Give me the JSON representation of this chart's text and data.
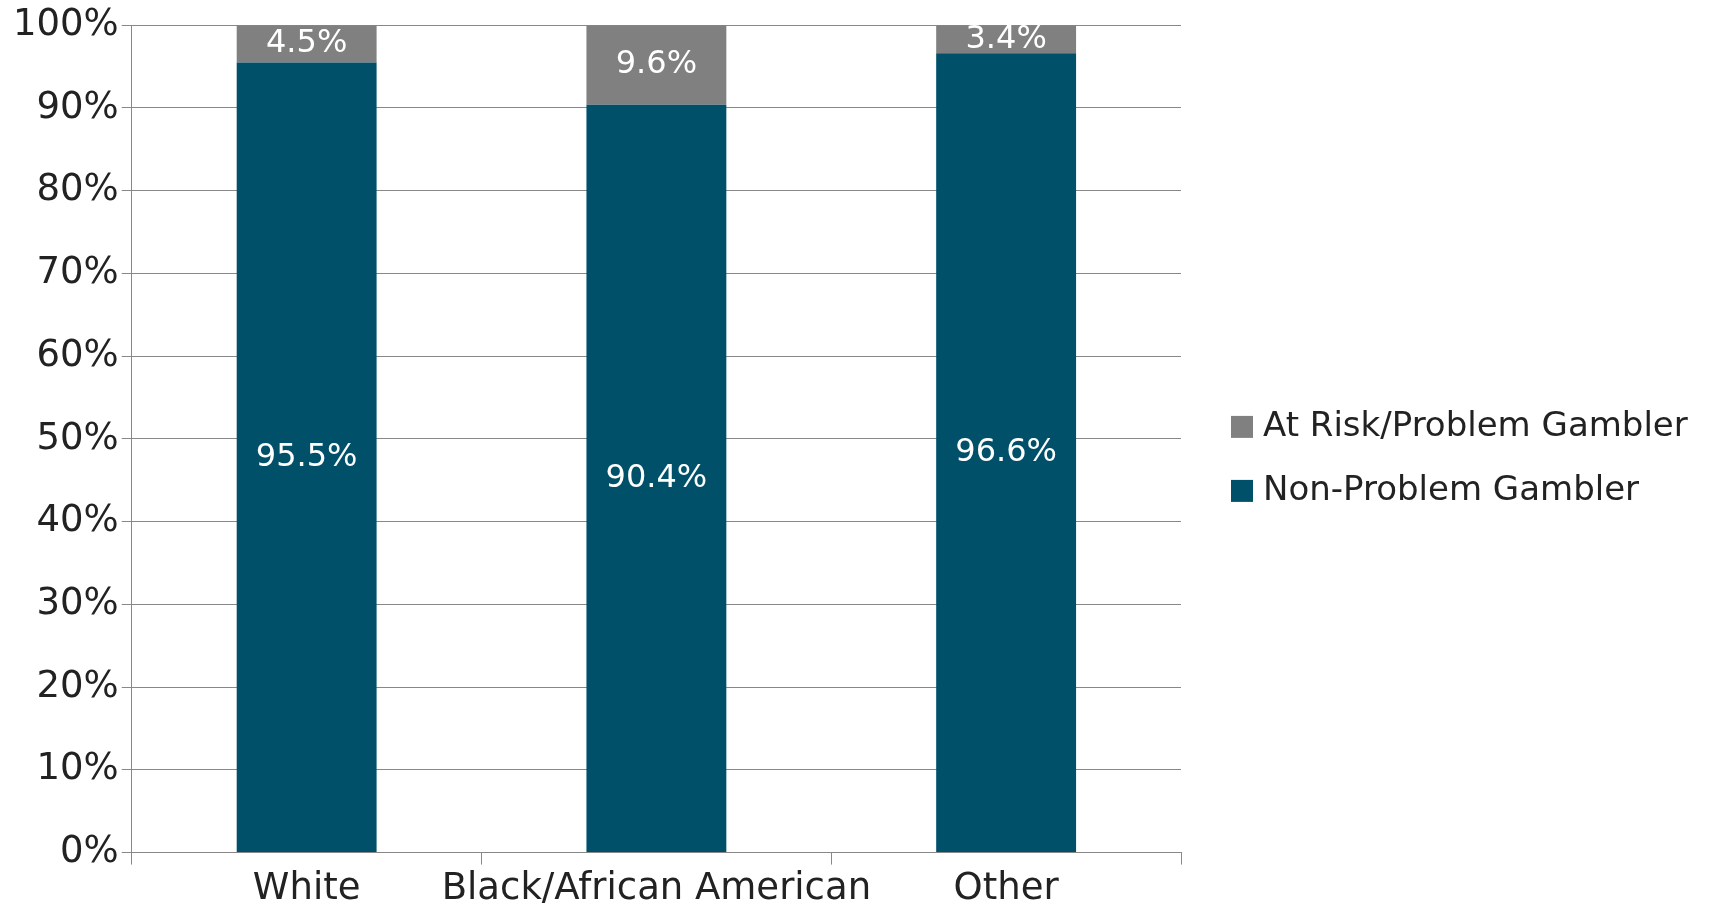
{
  "chart_data": {
    "type": "bar",
    "stacked": true,
    "categories": [
      "White",
      "Black/African American",
      "Other"
    ],
    "series": [
      {
        "name": "Non-Problem Gambler",
        "color": "#00506a",
        "values": [
          95.5,
          90.4,
          96.6
        ]
      },
      {
        "name": "At Risk/Problem Gambler",
        "color": "#808080",
        "values": [
          4.5,
          9.6,
          3.4
        ]
      }
    ],
    "ylim": [
      0,
      100
    ],
    "yticks": [
      {
        "value": 0,
        "label": "0%"
      },
      {
        "value": 10,
        "label": "10%"
      },
      {
        "value": 20,
        "label": "20%"
      },
      {
        "value": 30,
        "label": "30%"
      },
      {
        "value": 40,
        "label": "40%"
      },
      {
        "value": 50,
        "label": "50%"
      },
      {
        "value": 60,
        "label": "60%"
      },
      {
        "value": 70,
        "label": "70%"
      },
      {
        "value": 80,
        "label": "80%"
      },
      {
        "value": 90,
        "label": "90%"
      },
      {
        "value": 100,
        "label": "100%"
      }
    ],
    "value_labels": [
      [
        "95.5%",
        "90.4%",
        "96.6%"
      ],
      [
        "4.5%",
        "9.6%",
        "3.4%"
      ]
    ],
    "grid": "y",
    "legend": "right"
  }
}
